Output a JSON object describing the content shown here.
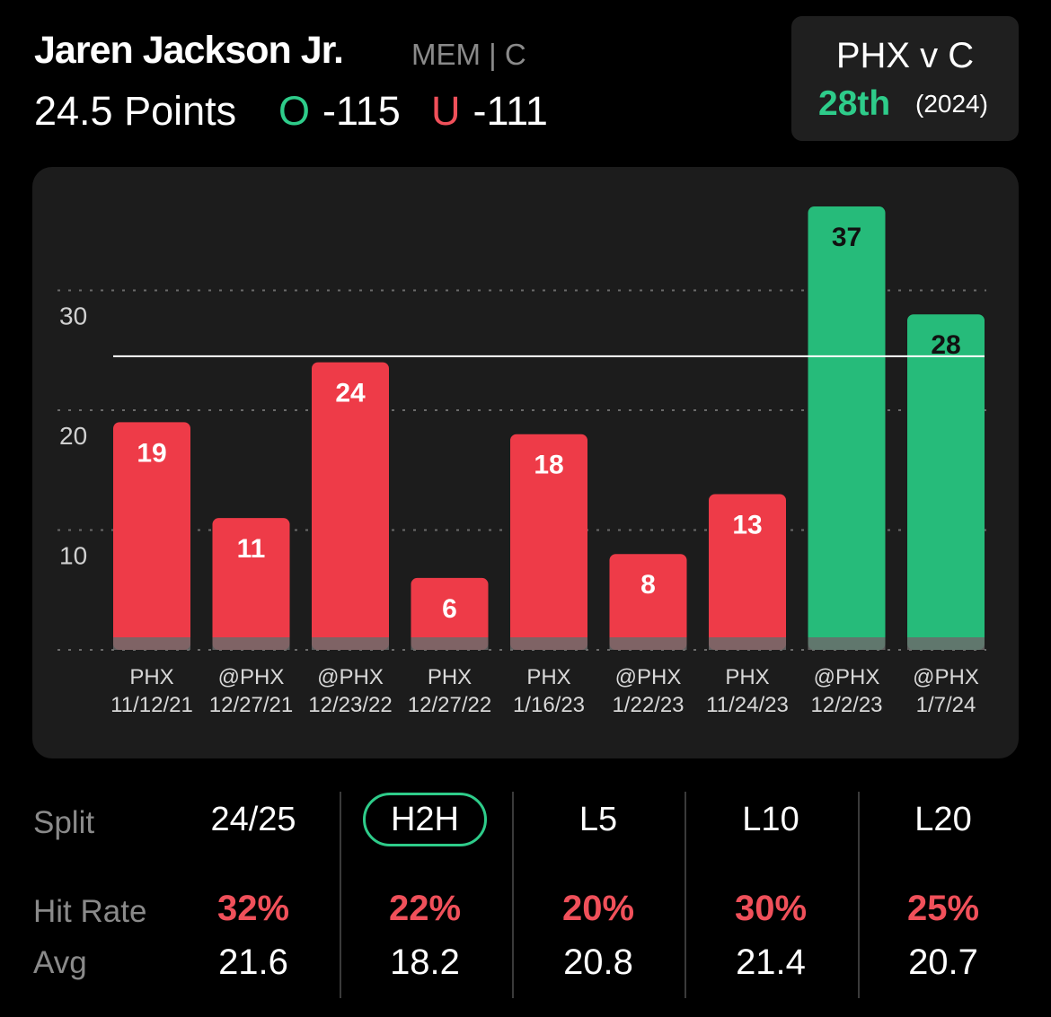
{
  "header": {
    "player_name": "Jaren Jackson Jr.",
    "team_position": "MEM | C",
    "prop_line": "24.5 Points",
    "over_label": "O",
    "over_odds": "-115",
    "under_label": "U",
    "under_odds": "-111"
  },
  "matchup": {
    "title": "PHX v C",
    "rank": "28th",
    "year": "(2024)"
  },
  "colors": {
    "hit": "#26bb7a",
    "miss": "#ee3b48",
    "over": "#2ecc8a",
    "under": "#f0505a"
  },
  "chart_data": {
    "type": "bar",
    "threshold": 24.5,
    "ylim": [
      0,
      37
    ],
    "yticks": [
      10,
      20,
      30
    ],
    "categories": [
      {
        "opponent": "PHX",
        "date": "11/12/21"
      },
      {
        "opponent": "@PHX",
        "date": "12/27/21"
      },
      {
        "opponent": "@PHX",
        "date": "12/23/22"
      },
      {
        "opponent": "PHX",
        "date": "12/27/22"
      },
      {
        "opponent": "PHX",
        "date": "1/16/23"
      },
      {
        "opponent": "@PHX",
        "date": "1/22/23"
      },
      {
        "opponent": "PHX",
        "date": "11/24/23"
      },
      {
        "opponent": "@PHX",
        "date": "12/2/23"
      },
      {
        "opponent": "@PHX",
        "date": "1/7/24"
      }
    ],
    "values": [
      19,
      11,
      24,
      6,
      18,
      8,
      13,
      37,
      28
    ]
  },
  "splits": {
    "row_labels": {
      "split": "Split",
      "hit_rate": "Hit Rate",
      "avg": "Avg"
    },
    "columns": [
      {
        "label": "24/25",
        "hit_rate": "32%",
        "avg": "21.6",
        "selected": false
      },
      {
        "label": "H2H",
        "hit_rate": "22%",
        "avg": "18.2",
        "selected": true
      },
      {
        "label": "L5",
        "hit_rate": "20%",
        "avg": "20.8",
        "selected": false
      },
      {
        "label": "L10",
        "hit_rate": "30%",
        "avg": "21.4",
        "selected": false
      },
      {
        "label": "L20",
        "hit_rate": "25%",
        "avg": "20.7",
        "selected": false
      }
    ]
  }
}
